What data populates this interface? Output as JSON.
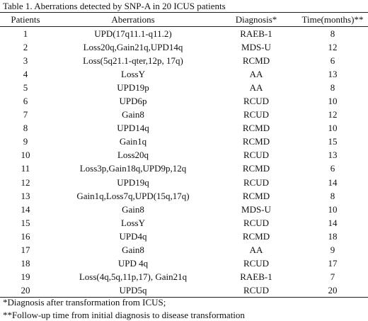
{
  "caption": "Table 1. Aberrations detected by SNP-A in 20 ICUS patients",
  "headers": [
    "Patients",
    "Aberrations",
    "Diagnosis*",
    "Time(months)**"
  ],
  "rows": [
    [
      "1",
      "UPD(17q11.1-q11.2)",
      "RAEB-1",
      "8"
    ],
    [
      "2",
      "Loss20q,Gain21q,UPD14q",
      "MDS-U",
      "12"
    ],
    [
      "3",
      "Loss(5q21.1-qter,12p, 17q)",
      "RCMD",
      "6"
    ],
    [
      "4",
      "LossY",
      "AA",
      "13"
    ],
    [
      "5",
      "UPD19p",
      "AA",
      "8"
    ],
    [
      "6",
      "UPD6p",
      "RCUD",
      "10"
    ],
    [
      "7",
      "Gain8",
      "RCUD",
      "12"
    ],
    [
      "8",
      "UPD14q",
      "RCMD",
      "10"
    ],
    [
      "9",
      "Gain1q",
      "RCMD",
      "15"
    ],
    [
      "10",
      "Loss20q",
      "RCUD",
      "13"
    ],
    [
      "11",
      "Loss3p,Gain18q,UPD9p,12q",
      "RCMD",
      "6"
    ],
    [
      "12",
      "UPD19q",
      "RCUD",
      "14"
    ],
    [
      "13",
      "Gain1q,Loss7q,UPD(15q,17q)",
      "RCMD",
      "8"
    ],
    [
      "14",
      "Gain8",
      "MDS-U",
      "10"
    ],
    [
      "15",
      "LossY",
      "RCUD",
      "14"
    ],
    [
      "16",
      "UPD4q",
      "RCMD",
      "18"
    ],
    [
      "17",
      "Gain8",
      "AA",
      "9"
    ],
    [
      "18",
      "UPD 4q",
      "RCUD",
      "17"
    ],
    [
      "19",
      "Loss(4q,5q,11p,17), Gain21q",
      "RAEB-1",
      "7"
    ],
    [
      "20",
      "UPD5q",
      "RCUD",
      "20"
    ]
  ],
  "footnotes": [
    "*Diagnosis after transformation from ICUS;",
    "**Follow-up time from initial diagnosis to disease transformation"
  ]
}
